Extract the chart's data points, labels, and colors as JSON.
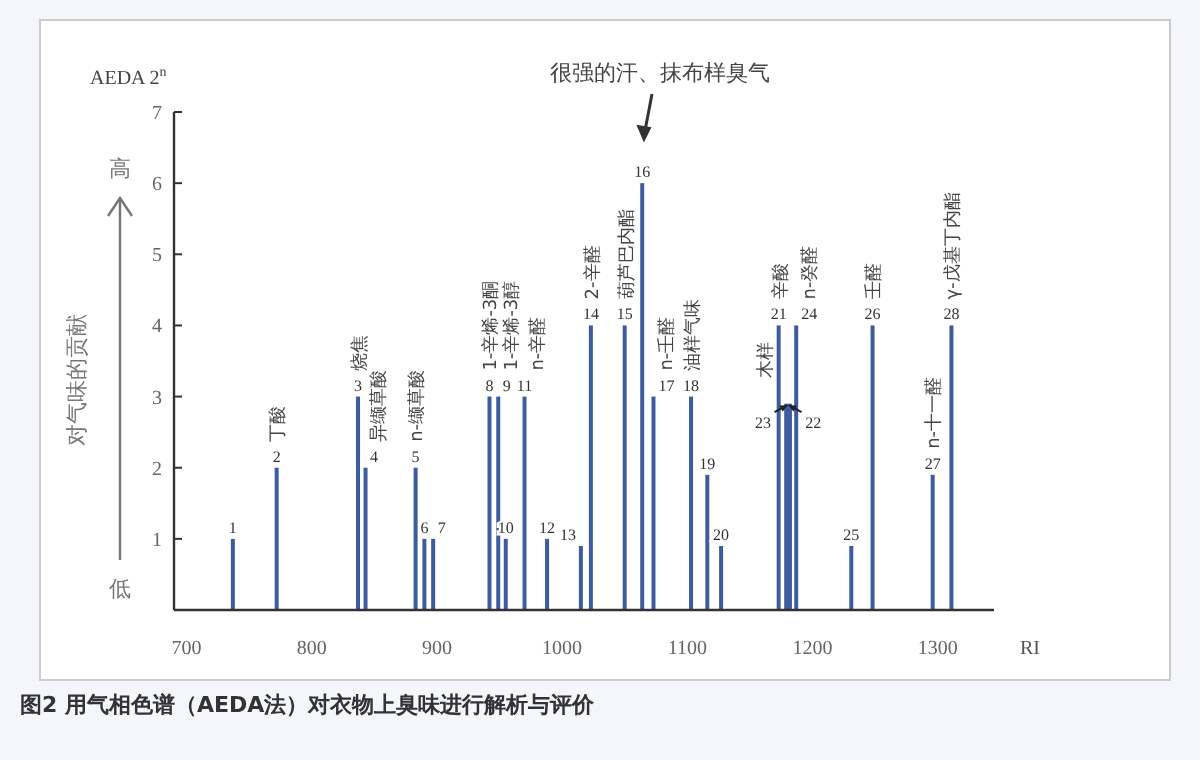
{
  "chart_data": {
    "type": "bar",
    "color": "#3d5c9e",
    "x": [
      737,
      772,
      837,
      843,
      883,
      890,
      897,
      942,
      949,
      955,
      970,
      988,
      1015,
      1023,
      1050,
      1064,
      1073,
      1103,
      1116,
      1127,
      1173,
      1179,
      1182,
      1187,
      1231,
      1248,
      1296,
      1311
    ],
    "values": [
      1,
      2,
      3,
      2,
      2,
      1,
      1,
      3,
      3,
      1,
      3,
      1,
      0.9,
      4,
      4,
      6,
      3,
      3,
      1.9,
      0.9,
      4,
      2.9,
      2.9,
      4,
      0.9,
      4,
      1.9,
      4
    ],
    "xlim": [
      690,
      1345
    ],
    "xticks": [
      700,
      800,
      900,
      1000,
      1100,
      1200,
      1300
    ],
    "ylim": [
      0,
      7
    ],
    "yticks": [
      1,
      2,
      3,
      4,
      5,
      6,
      7
    ],
    "ylabel": "AEDA 2$^{n}$",
    "xlabel": "RI",
    "annotations": [
      "图2  用气相色谱（AEDA法）对衣物上臭味进行解析与评价",
      "很强的汗、抹布样臭气",
      "对气味的贡献",
      "高",
      "低",
      {
        "text": "1",
        "x": 737,
        "y": 1
      },
      {
        "text": "2",
        "x": 772,
        "y": 2
      },
      {
        "text": "丁酸",
        "x": 772,
        "y": 2
      },
      {
        "text": "3",
        "x": 837,
        "y": 3
      },
      {
        "text": "烧焦",
        "x": 837,
        "y": 3
      },
      {
        "text": "4",
        "x": 843,
        "y": 2
      },
      {
        "text": "异缬草酸",
        "x": 843,
        "y": 2
      },
      {
        "text": "5",
        "x": 883,
        "y": 2
      },
      {
        "text": "n-缬草酸",
        "x": 883,
        "y": 2
      },
      {
        "text": "6",
        "x": 890,
        "y": 1
      },
      {
        "text": "7",
        "x": 897,
        "y": 1
      },
      {
        "text": "8",
        "x": 942,
        "y": 3
      },
      {
        "text": "1-辛烯-3酮",
        "x": 942,
        "y": 3
      },
      {
        "text": "9",
        "x": 949,
        "y": 3
      },
      {
        "text": "1-辛烯-3醇",
        "x": 949,
        "y": 3
      },
      {
        "text": "10",
        "x": 955,
        "y": 1
      },
      {
        "text": "11",
        "x": 970,
        "y": 3
      },
      {
        "text": "n-辛醛",
        "x": 970,
        "y": 3
      },
      {
        "text": "12",
        "x": 988,
        "y": 1
      },
      {
        "text": "13",
        "x": 1015,
        "y": 0.9
      },
      {
        "text": "14",
        "x": 1023,
        "y": 4
      },
      {
        "text": "2-辛醛",
        "x": 1023,
        "y": 4
      },
      {
        "text": "15",
        "x": 1050,
        "y": 4
      },
      {
        "text": "葫芦巴内酯",
        "x": 1050,
        "y": 4
      },
      {
        "text": "16",
        "x": 1064,
        "y": 6
      },
      {
        "text": "17",
        "x": 1073,
        "y": 3
      },
      {
        "text": "n-壬醛",
        "x": 1073,
        "y": 3
      },
      {
        "text": "18",
        "x": 1103,
        "y": 3
      },
      {
        "text": "油样气味",
        "x": 1103,
        "y": 3
      },
      {
        "text": "19",
        "x": 1116,
        "y": 1.9
      },
      {
        "text": "20",
        "x": 1127,
        "y": 0.9
      },
      {
        "text": "21",
        "x": 1173,
        "y": 4
      },
      {
        "text": "辛酸",
        "x": 1173,
        "y": 4
      },
      {
        "text": "22",
        "x": 1179,
        "y": 2.9
      },
      {
        "text": "木样",
        "x": 1179,
        "y": 2.9
      },
      {
        "text": "23",
        "x": 1182,
        "y": 2.9
      },
      {
        "text": "24",
        "x": 1187,
        "y": 4
      },
      {
        "text": "n-癸醛",
        "x": 1187,
        "y": 4
      },
      {
        "text": "25",
        "x": 1231,
        "y": 0.9
      },
      {
        "text": "26",
        "x": 1248,
        "y": 4
      },
      {
        "text": "壬醛",
        "x": 1248,
        "y": 4
      },
      {
        "text": "27",
        "x": 1296,
        "y": 1.9
      },
      {
        "text": "n-十一醛",
        "x": 1296,
        "y": 1.9
      },
      {
        "text": "28",
        "x": 1311,
        "y": 4
      },
      {
        "text": "γ-戊基丁内酯",
        "x": 1311,
        "y": 4
      }
    ]
  }
}
